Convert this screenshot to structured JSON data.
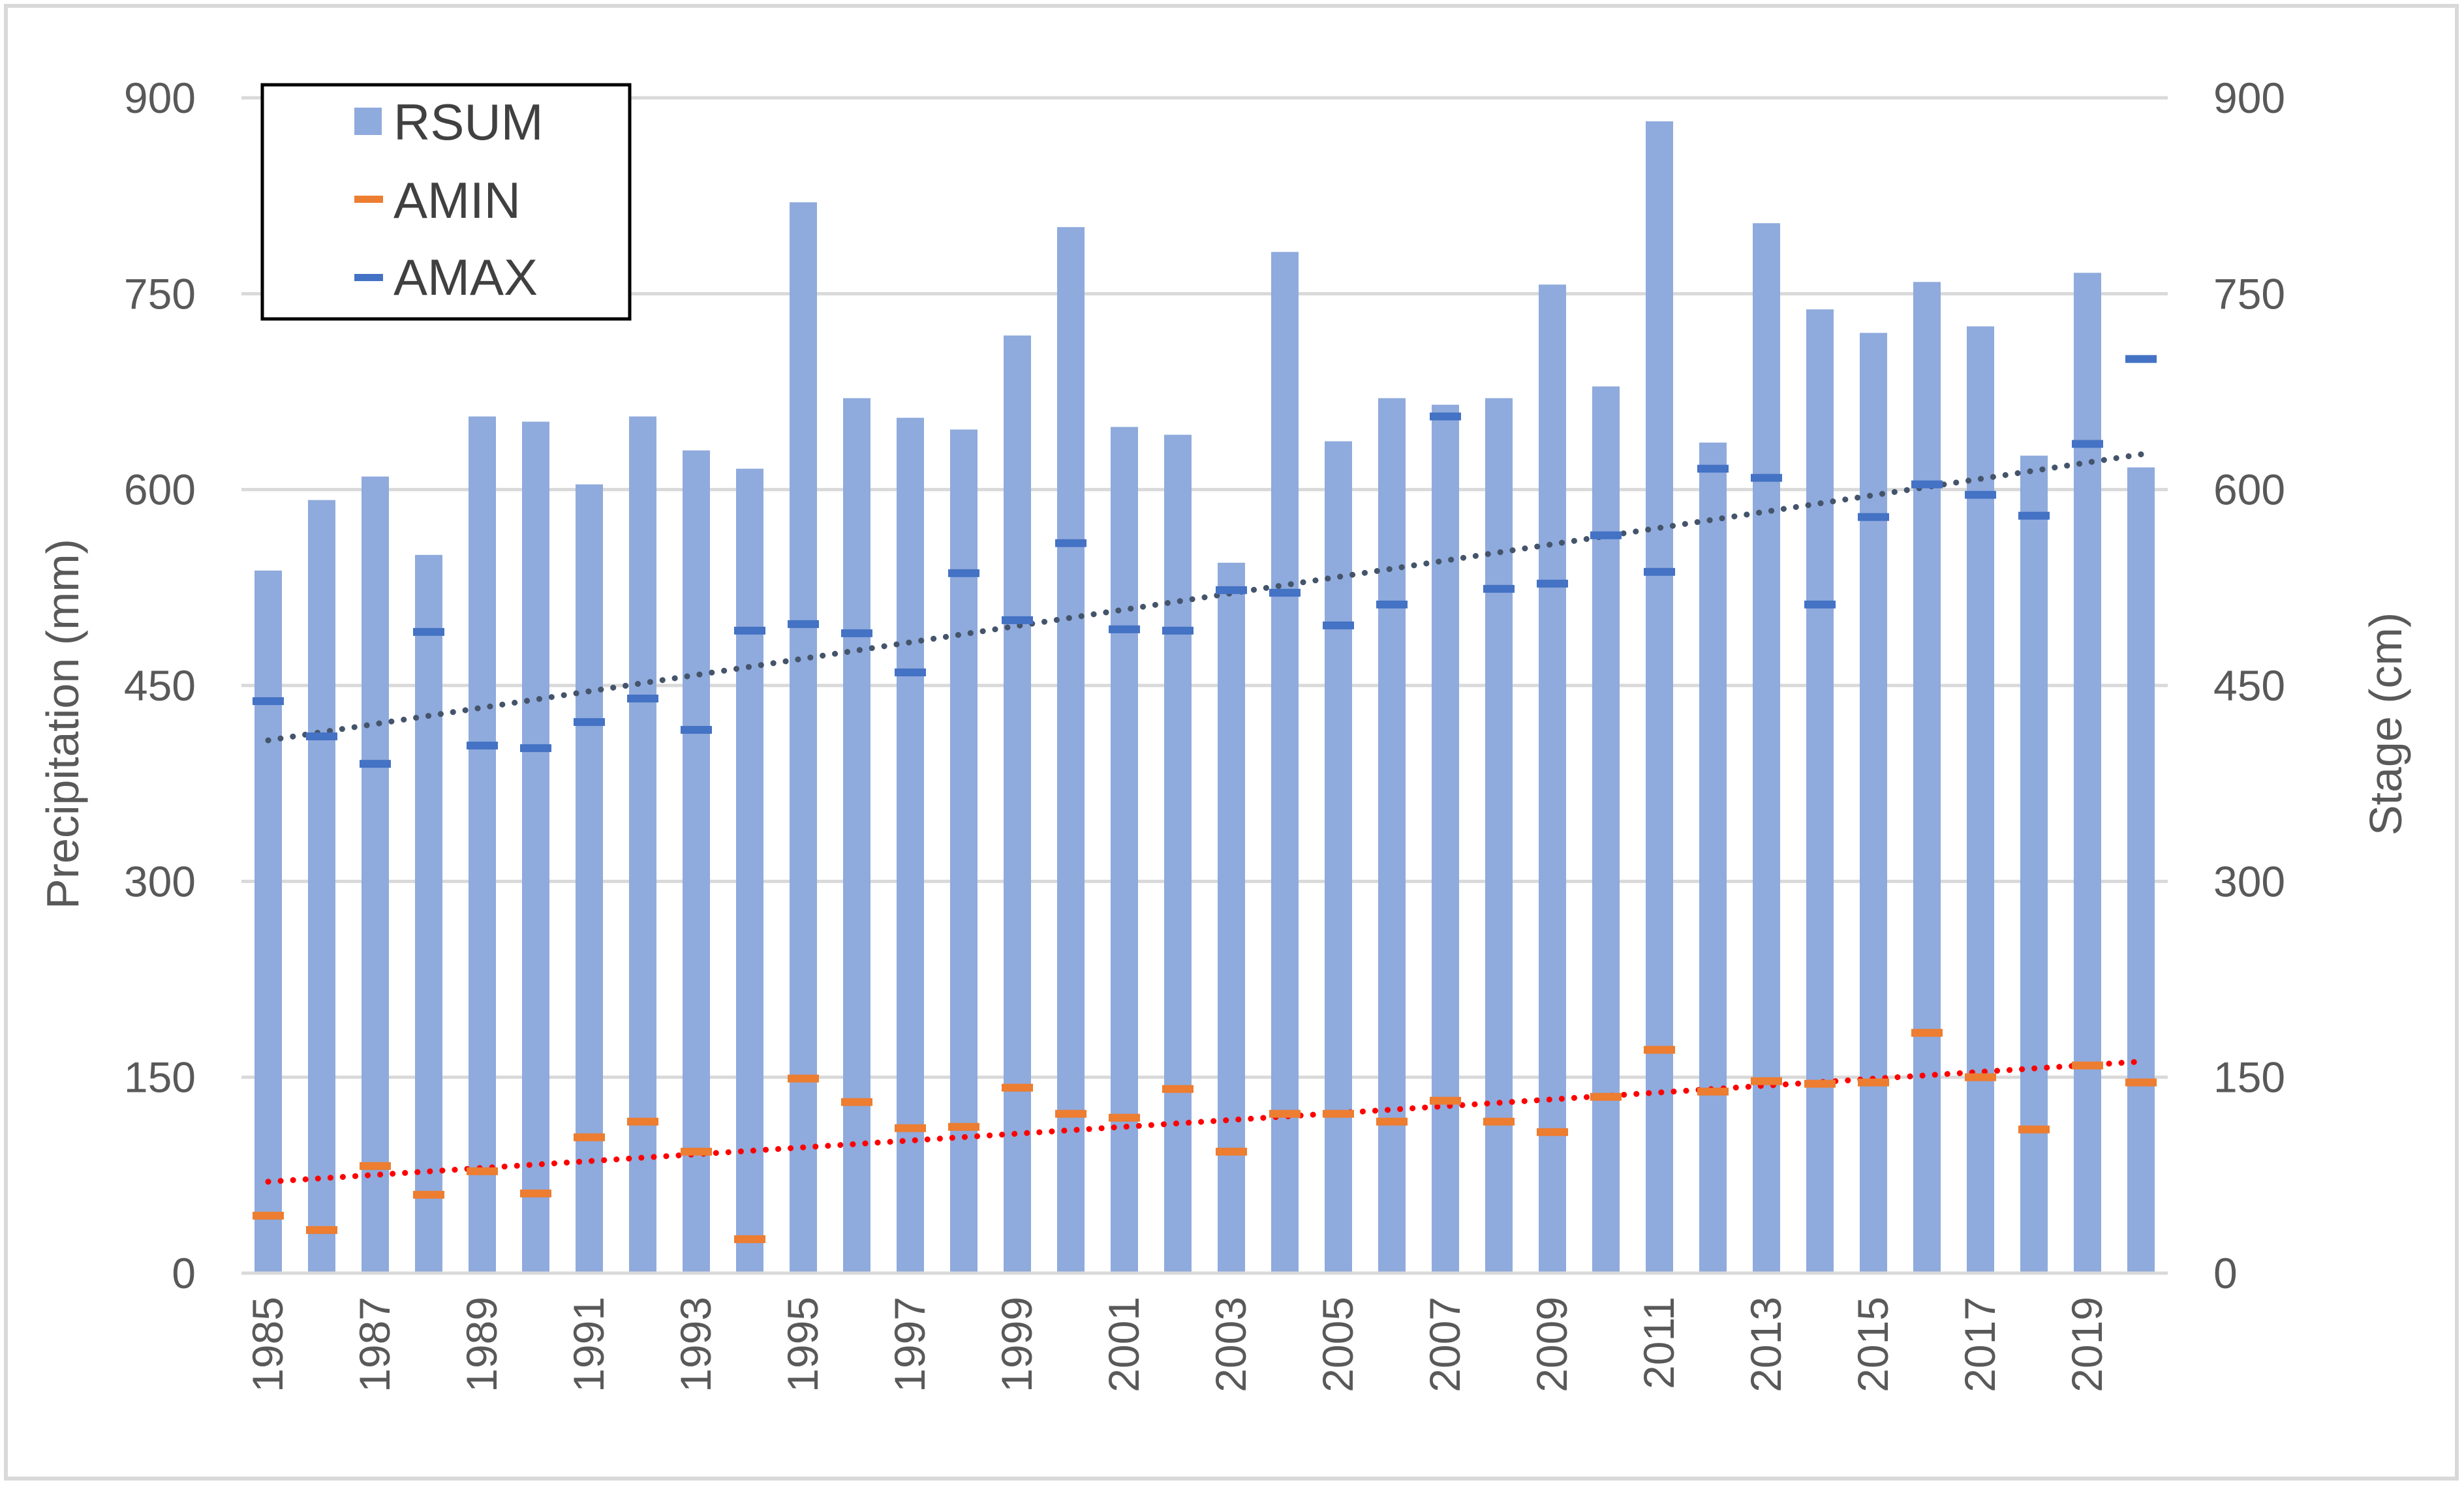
{
  "chart_data": {
    "type": "bar",
    "ylabel": "Precipitation (mm)",
    "y2label": "Stage (cm)",
    "ylim": [
      0,
      900
    ],
    "y2lim": [
      0,
      900
    ],
    "yticks": [
      "0",
      "150",
      "300",
      "450",
      "600",
      "750",
      "900"
    ],
    "y2ticks": [
      "0",
      "150",
      "300",
      "450",
      "600",
      "750",
      "900"
    ],
    "grid": true,
    "legend_placement": "top-left",
    "x": [
      "1985",
      "1986",
      "1987",
      "1988",
      "1989",
      "1990",
      "1991",
      "1992",
      "1993",
      "1994",
      "1995",
      "1996",
      "1997",
      "1998",
      "1999",
      "2000",
      "2001",
      "2002",
      "2003",
      "2004",
      "2005",
      "2006",
      "2007",
      "2008",
      "2009",
      "2010",
      "2011",
      "2012",
      "2013",
      "2014",
      "2015",
      "2016",
      "2017",
      "2018",
      "2019",
      "2020"
    ],
    "x_tick_labels": [
      "1985",
      "",
      "1987",
      "",
      "1989",
      "",
      "1991",
      "",
      "1993",
      "",
      "1995",
      "",
      "1997",
      "",
      "1999",
      "",
      "2001",
      "",
      "2003",
      "",
      "2005",
      "",
      "2007",
      "",
      "2009",
      "",
      "2011",
      "",
      "2013",
      "",
      "2015",
      "",
      "2017",
      "",
      "2019",
      ""
    ],
    "series": [
      {
        "name": "RSUM",
        "type": "bar",
        "axis": "left",
        "color": "#8faadc",
        "values": [
          538,
          592,
          610,
          550,
          656,
          652,
          604,
          656,
          630,
          616,
          820,
          670,
          655,
          646,
          718,
          801,
          648,
          642,
          544,
          782,
          637,
          670,
          665,
          670,
          757,
          679,
          882,
          636,
          804,
          738,
          720,
          759,
          725,
          626,
          766,
          617
        ]
      },
      {
        "name": "AMIN",
        "type": "marker",
        "axis": "right",
        "color": "#ed7d31",
        "values": [
          44,
          33,
          82,
          60,
          78,
          61,
          104,
          116,
          93,
          26,
          149,
          131,
          111,
          112,
          142,
          122,
          119,
          141,
          93,
          122,
          122,
          116,
          132,
          116,
          108,
          135,
          171,
          139,
          147,
          145,
          146,
          184,
          150,
          110,
          159,
          146
        ]
      },
      {
        "name": "AMAX",
        "type": "marker",
        "axis": "right",
        "color": "#4472c4",
        "values": [
          438,
          411,
          390,
          491,
          404,
          402,
          422,
          440,
          416,
          492,
          497,
          490,
          460,
          536,
          500,
          559,
          493,
          492,
          523,
          521,
          496,
          512,
          656,
          524,
          528,
          565,
          537,
          616,
          609,
          512,
          579,
          604,
          596,
          580,
          635,
          700
        ]
      }
    ],
    "trendlines": [
      {
        "of": "AMAX",
        "color": "#44546a",
        "style": "dotted",
        "start": 408,
        "end": 627
      },
      {
        "of": "AMIN",
        "color": "#ff0000",
        "style": "dotted",
        "start": 70,
        "end": 162
      }
    ],
    "colors": {
      "frame": "#d9d9d9",
      "grid": "#d9d9d9",
      "text": "#595959",
      "legend_border": "#000000"
    }
  }
}
